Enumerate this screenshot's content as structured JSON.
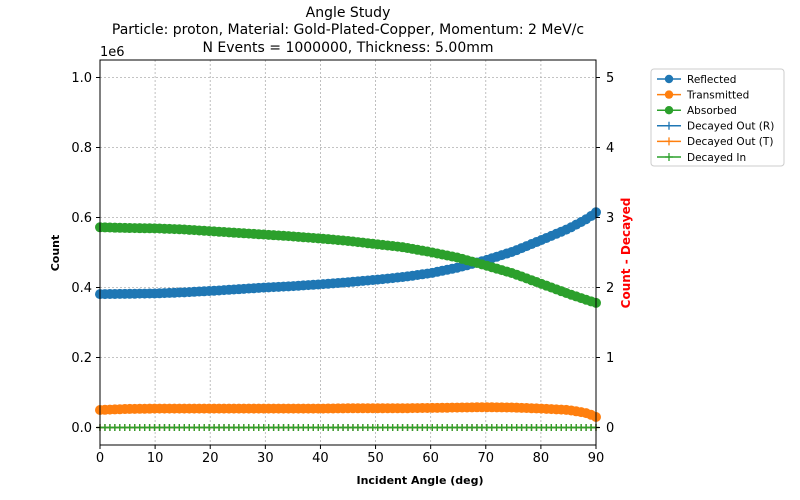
{
  "chart_data": {
    "type": "line",
    "title": "Angle Study",
    "subtitle_lines": [
      "Particle: proton, Material: Gold-Plated-Copper, Momentum: 2 MeV/c",
      "N Events = 1000000, Thickness: 5.00mm"
    ],
    "xlabel": "Incident Angle (deg)",
    "ylabel": "Count",
    "ylabel_right": "Count - Decayed",
    "y_offset_label": "1e6",
    "xlim": [
      0,
      90
    ],
    "ylim": [
      -0.05,
      1.05
    ],
    "ylim_right": [
      -0.25,
      5.25
    ],
    "x_ticks": [
      "0",
      "10",
      "20",
      "30",
      "40",
      "50",
      "60",
      "70",
      "80",
      "90"
    ],
    "y_ticks": [
      "0.0",
      "0.2",
      "0.4",
      "0.6",
      "0.8",
      "1.0"
    ],
    "y_ticks_right": [
      "0",
      "1",
      "2",
      "3",
      "4",
      "5"
    ],
    "grid": true,
    "legend_position": "outside-right-top",
    "x": [
      0,
      5,
      10,
      15,
      20,
      25,
      30,
      35,
      40,
      45,
      50,
      55,
      60,
      65,
      70,
      75,
      80,
      85,
      88,
      89,
      90
    ],
    "series": [
      {
        "name": "Reflected",
        "axis": "left",
        "marker": "circle",
        "color": "#1f77b4",
        "values": [
          0.381,
          0.382,
          0.383,
          0.386,
          0.39,
          0.395,
          0.4,
          0.404,
          0.409,
          0.415,
          0.422,
          0.43,
          0.441,
          0.457,
          0.478,
          0.503,
          0.535,
          0.568,
          0.593,
          0.603,
          0.615
        ]
      },
      {
        "name": "Transmitted",
        "axis": "left",
        "marker": "circle",
        "color": "#ff7f0e",
        "values": [
          0.05,
          0.053,
          0.054,
          0.054,
          0.054,
          0.054,
          0.054,
          0.054,
          0.054,
          0.055,
          0.055,
          0.055,
          0.056,
          0.057,
          0.058,
          0.057,
          0.054,
          0.05,
          0.042,
          0.037,
          0.03
        ]
      },
      {
        "name": "Absorbed",
        "axis": "left",
        "marker": "circle",
        "color": "#2ca02c",
        "values": [
          0.572,
          0.57,
          0.569,
          0.566,
          0.561,
          0.556,
          0.551,
          0.546,
          0.54,
          0.533,
          0.524,
          0.515,
          0.501,
          0.485,
          0.463,
          0.44,
          0.411,
          0.382,
          0.366,
          0.361,
          0.356
        ]
      },
      {
        "name": "Decayed Out (R)",
        "axis": "right",
        "marker": "plus",
        "color": "#1f77b4",
        "values": [
          0,
          0,
          0,
          0,
          0,
          0,
          0,
          0,
          0,
          0,
          0,
          0,
          0,
          0,
          0,
          0,
          0,
          0,
          0,
          0,
          0
        ]
      },
      {
        "name": "Decayed Out (T)",
        "axis": "right",
        "marker": "plus",
        "color": "#ff7f0e",
        "values": [
          0,
          0,
          0,
          0,
          0,
          0,
          0,
          0,
          0,
          0,
          0,
          0,
          0,
          0,
          0,
          0,
          0,
          0,
          0,
          0,
          0
        ]
      },
      {
        "name": "Decayed In",
        "axis": "right",
        "marker": "plus",
        "color": "#2ca02c",
        "values": [
          0,
          0,
          0,
          0,
          0,
          0,
          0,
          0,
          0,
          0,
          0,
          0,
          0,
          0,
          0,
          0,
          0,
          0,
          0,
          0,
          0
        ]
      }
    ]
  }
}
